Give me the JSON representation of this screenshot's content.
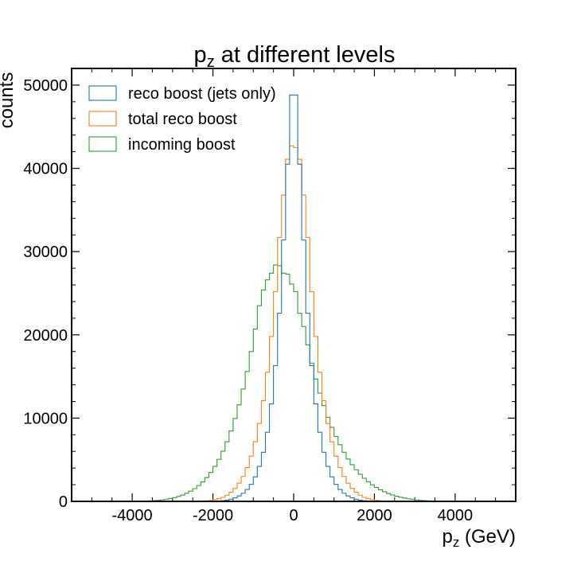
{
  "chart_data": {
    "type": "histogram",
    "title_main": "p",
    "title_sub": "z",
    "title_rest": " at different levels",
    "xlabel_main": "p",
    "xlabel_sub": "z",
    "xlabel_rest": " (GeV)",
    "ylabel": "counts",
    "xlim": [
      -5500,
      5500
    ],
    "ylim": [
      0,
      52000
    ],
    "xticks": [
      -4000,
      -2000,
      0,
      2000,
      4000
    ],
    "yticks": [
      0,
      10000,
      20000,
      30000,
      40000,
      50000
    ],
    "xtick_labels": [
      "-4000",
      "-2000",
      "0",
      "2000",
      "4000"
    ],
    "ytick_labels": [
      "0",
      "10000",
      "20000",
      "30000",
      "40000",
      "50000"
    ],
    "legend_position": "top-left",
    "bin_edges_range": [
      -5000,
      5000
    ],
    "bin_count": 100,
    "series": [
      {
        "name": "reco boost (jets only)",
        "color": "#1f77b4",
        "scale_half": 330,
        "shape": "laplace",
        "peak": 49000,
        "values": [
          0,
          0,
          0,
          0,
          0,
          0,
          0,
          0,
          0,
          0,
          0,
          0,
          0,
          0,
          0,
          0,
          0,
          0,
          0,
          0,
          0,
          0,
          0,
          0,
          0,
          0,
          0,
          0,
          0,
          0,
          20,
          40,
          80,
          150,
          260,
          420,
          650,
          980,
          1430,
          2050,
          2950,
          4200,
          5900,
          8300,
          11700,
          16300,
          22600,
          31400,
          40500,
          48800,
          48800,
          40500,
          31400,
          22600,
          16300,
          11700,
          8300,
          5900,
          4200,
          2950,
          2050,
          1430,
          980,
          650,
          420,
          260,
          150,
          80,
          40,
          20,
          0,
          0,
          0,
          0,
          0,
          0,
          0,
          0,
          0,
          0,
          0,
          0,
          0,
          0,
          0,
          0,
          0,
          0,
          0,
          0,
          0,
          0,
          0,
          0,
          0,
          0,
          0,
          0,
          0,
          0
        ]
      },
      {
        "name": "total reco boost",
        "color": "#ff7f0e",
        "values": [
          0,
          0,
          0,
          0,
          0,
          0,
          0,
          0,
          0,
          0,
          0,
          0,
          0,
          0,
          0,
          0,
          0,
          0,
          0,
          0,
          0,
          0,
          0,
          0,
          0,
          10,
          20,
          40,
          70,
          120,
          200,
          320,
          490,
          740,
          1090,
          1560,
          2180,
          3000,
          4060,
          5430,
          7160,
          9350,
          12100,
          15500,
          19800,
          25200,
          31700,
          36800,
          41100,
          42700,
          42500,
          41100,
          36800,
          31700,
          25200,
          19800,
          15500,
          12100,
          9350,
          7160,
          5430,
          4060,
          3000,
          2180,
          1560,
          1090,
          740,
          490,
          320,
          200,
          120,
          70,
          40,
          20,
          10,
          0,
          0,
          0,
          0,
          0,
          0,
          0,
          0,
          0,
          0,
          0,
          0,
          0,
          0,
          0,
          0,
          0,
          0,
          0,
          0,
          0,
          0,
          0,
          0,
          0
        ]
      },
      {
        "name": "incoming boost",
        "color": "#2ca02c",
        "values": [
          0,
          0,
          0,
          0,
          0,
          0,
          0,
          0,
          0,
          0,
          0,
          0,
          20,
          40,
          60,
          90,
          130,
          180,
          250,
          340,
          450,
          590,
          760,
          970,
          1220,
          1530,
          1900,
          2340,
          2860,
          3470,
          4200,
          5050,
          6030,
          7160,
          8470,
          9960,
          11600,
          13500,
          15600,
          18000,
          20700,
          23500,
          25400,
          26600,
          27400,
          28400,
          28300,
          27400,
          27300,
          26100,
          25200,
          22600,
          21000,
          18800,
          16600,
          14700,
          13000,
          11500,
          10100,
          8900,
          7800,
          6800,
          5900,
          5100,
          4400,
          3800,
          3260,
          2780,
          2360,
          1990,
          1670,
          1390,
          1150,
          940,
          770,
          620,
          500,
          400,
          310,
          240,
          180,
          130,
          90,
          60,
          40,
          20,
          10,
          0,
          0,
          0,
          0,
          0,
          0,
          0,
          0,
          0,
          0,
          0,
          0,
          0
        ]
      }
    ]
  }
}
